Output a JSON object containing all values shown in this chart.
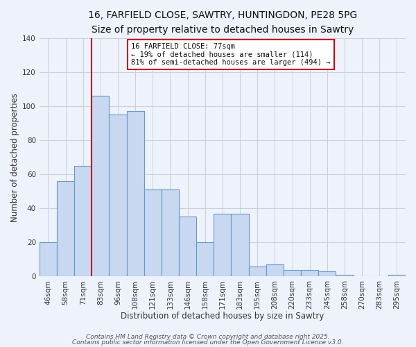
{
  "title_line1": "16, FARFIELD CLOSE, SAWTRY, HUNTINGDON, PE28 5PG",
  "title_line2": "Size of property relative to detached houses in Sawtry",
  "xlabel": "Distribution of detached houses by size in Sawtry",
  "ylabel": "Number of detached properties",
  "categories": [
    "46sqm",
    "58sqm",
    "71sqm",
    "83sqm",
    "96sqm",
    "108sqm",
    "121sqm",
    "133sqm",
    "146sqm",
    "158sqm",
    "171sqm",
    "183sqm",
    "195sqm",
    "208sqm",
    "220sqm",
    "233sqm",
    "245sqm",
    "258sqm",
    "270sqm",
    "283sqm",
    "295sqm"
  ],
  "values": [
    20,
    56,
    65,
    106,
    95,
    97,
    51,
    51,
    35,
    20,
    37,
    37,
    6,
    7,
    4,
    4,
    3,
    1,
    0,
    0,
    1
  ],
  "bar_color": "#c8d8f0",
  "bar_edge_color": "#6699cc",
  "vline_color": "#cc0000",
  "vline_x_index": 2,
  "annotation_text_line1": "16 FARFIELD CLOSE: 77sqm",
  "annotation_text_line2": "← 19% of detached houses are smaller (114)",
  "annotation_text_line3": "81% of semi-detached houses are larger (494) →",
  "ylim": [
    0,
    140
  ],
  "yticks": [
    0,
    20,
    40,
    60,
    80,
    100,
    120,
    140
  ],
  "background_color": "#eef2fb",
  "grid_color": "#c8d0e0",
  "footer_line1": "Contains HM Land Registry data © Crown copyright and database right 2025.",
  "footer_line2": "Contains public sector information licensed under the Open Government Licence v3.0.",
  "title_fontsize": 10,
  "subtitle_fontsize": 9,
  "axis_label_fontsize": 8.5,
  "tick_fontsize": 7.5,
  "annotation_fontsize": 7.5,
  "footer_fontsize": 6.5
}
